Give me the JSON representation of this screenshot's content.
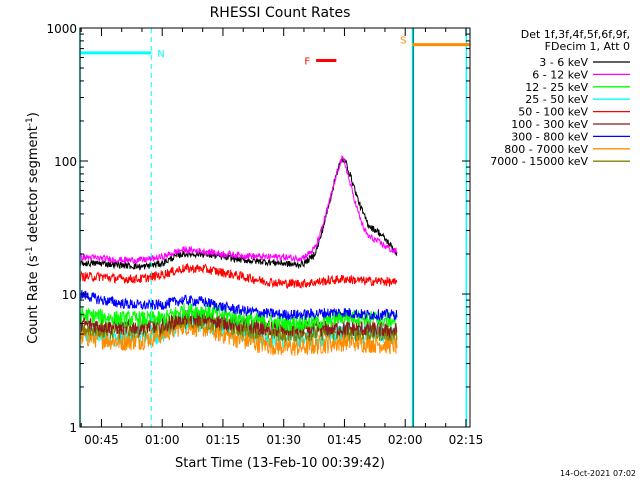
{
  "chart_data": {
    "type": "line",
    "title": "RHESSI Count Rates",
    "xlabel": "Start Time (13-Feb-10 00:39:42)",
    "ylabel_pre": "Count Rate (s",
    "ylabel_sup1": "-1",
    "ylabel_mid": " detector segment",
    "ylabel_sup2": "-1",
    "ylabel_post": ")",
    "x_unit": "minutes after 00:00 UT, 13-Feb-2010",
    "xlim": [
      39.7,
      136.0
    ],
    "ylim": [
      1,
      1000
    ],
    "yscale": "log",
    "x_ticks": [
      {
        "value": 45,
        "label": "00:45"
      },
      {
        "value": 60,
        "label": "01:00"
      },
      {
        "value": 75,
        "label": "01:15"
      },
      {
        "value": 90,
        "label": "01:30"
      },
      {
        "value": 105,
        "label": "01:45"
      },
      {
        "value": 120,
        "label": "02:00"
      },
      {
        "value": 135,
        "label": "02:15"
      }
    ],
    "y_ticks": [
      {
        "value": 1,
        "label": "1"
      },
      {
        "value": 10,
        "label": "10"
      },
      {
        "value": 100,
        "label": "100"
      },
      {
        "value": 1000,
        "label": "1000"
      }
    ],
    "legend_header": [
      "Det 1f,3f,4f,5f,6f,9f,",
      "FDecim 1, Att 0"
    ],
    "legend_position": "right, outside plot",
    "series": [
      {
        "name": "3 - 6 keV",
        "color": "#000000",
        "x": [
          39.7,
          45,
          50,
          55,
          60,
          63,
          65,
          70,
          75,
          80,
          85,
          90,
          93,
          95,
          97,
          98,
          99,
          100,
          101,
          102,
          103,
          103.5,
          104,
          104.5,
          105,
          105.5,
          106,
          107,
          108,
          109,
          110,
          111,
          112,
          113,
          114,
          115,
          116,
          117,
          118
        ],
        "y": [
          17,
          17,
          16.5,
          16,
          17,
          19,
          20,
          20,
          19,
          18,
          17.5,
          17,
          16.5,
          17,
          19,
          21,
          26,
          34,
          45,
          60,
          80,
          90,
          97,
          102,
          100,
          95,
          85,
          70,
          55,
          45,
          38,
          33,
          31,
          30,
          28,
          26,
          24,
          22,
          20
        ]
      },
      {
        "name": "6 - 12 keV",
        "color": "#ff00ff",
        "x": [
          39.7,
          45,
          50,
          55,
          60,
          63,
          65,
          70,
          75,
          80,
          85,
          90,
          93,
          95,
          97,
          98,
          99,
          100,
          101,
          102,
          103,
          103.5,
          104,
          104.5,
          105,
          105.5,
          106,
          107,
          108,
          109,
          110,
          111,
          112,
          113,
          114,
          115,
          116,
          117,
          118
        ],
        "y": [
          19,
          18.5,
          18,
          18,
          19,
          20.5,
          21.5,
          21,
          20,
          19.5,
          19,
          19,
          18.5,
          19,
          21,
          23,
          28,
          36,
          46,
          60,
          78,
          88,
          98,
          104,
          97,
          88,
          75,
          58,
          45,
          36,
          30,
          27,
          26,
          25,
          24,
          23,
          22,
          21,
          21
        ]
      },
      {
        "name": "12 - 25 keV",
        "color": "#00ff00",
        "x": [
          39.7,
          50,
          60,
          65,
          70,
          80,
          90,
          100,
          105,
          110,
          118
        ],
        "y": [
          7,
          6.5,
          6.5,
          7.5,
          7.5,
          6.5,
          6.0,
          6.2,
          6.8,
          6.6,
          6.3
        ]
      },
      {
        "name": "25 - 50 keV",
        "color": "#00ffff",
        "x": [
          39.7,
          50,
          60,
          65,
          70,
          80,
          90,
          100,
          105,
          110,
          118
        ],
        "y": [
          5.0,
          4.6,
          5.0,
          6.0,
          6.0,
          5.1,
          4.6,
          4.8,
          5.2,
          5.0,
          4.8
        ]
      },
      {
        "name": "50 - 100 keV",
        "color": "#ff0000",
        "x": [
          39.7,
          45,
          50,
          55,
          60,
          65,
          70,
          75,
          80,
          85,
          90,
          95,
          100,
          105,
          110,
          115,
          118
        ],
        "y": [
          13.5,
          13.5,
          13,
          13,
          14,
          15.5,
          15.5,
          14.5,
          13.5,
          12.5,
          12,
          12,
          12.5,
          13,
          12.5,
          12.5,
          12
        ]
      },
      {
        "name": "100 - 300 keV",
        "color": "#8b1a1a",
        "x": [
          39.7,
          50,
          60,
          65,
          70,
          80,
          90,
          100,
          110,
          118
        ],
        "y": [
          6.0,
          5.6,
          5.8,
          6.6,
          6.6,
          5.8,
          5.4,
          5.5,
          5.5,
          5.3
        ]
      },
      {
        "name": "300 - 800 keV",
        "color": "#0000ff",
        "x": [
          39.7,
          45,
          50,
          55,
          60,
          65,
          70,
          75,
          80,
          85,
          90,
          95,
          100,
          105,
          110,
          115,
          118
        ],
        "y": [
          10,
          9,
          8.5,
          8.2,
          8.3,
          9,
          8.8,
          8,
          7.5,
          7.2,
          7.0,
          7.0,
          7.2,
          7.3,
          7.0,
          7.0,
          7.0
        ]
      },
      {
        "name": "800 - 7000 keV",
        "color": "#ff8c00",
        "x": [
          39.7,
          45,
          50,
          55,
          60,
          65,
          70,
          75,
          80,
          85,
          90,
          95,
          100,
          105,
          110,
          115,
          118
        ],
        "y": [
          4.8,
          4.6,
          4.4,
          4.5,
          5.0,
          5.8,
          5.6,
          5.0,
          4.5,
          4.2,
          4.0,
          4.0,
          4.2,
          4.4,
          4.3,
          4.2,
          4.1
        ]
      },
      {
        "name": "7000 - 15000 keV",
        "color": "#808000",
        "x": [
          39.7,
          50,
          60,
          65,
          70,
          80,
          90,
          100,
          110,
          118
        ],
        "y": [
          5.5,
          5.2,
          5.5,
          6.3,
          6.2,
          5.4,
          5.0,
          5.1,
          5.1,
          5.0
        ]
      }
    ],
    "annotations": [
      {
        "label": "N",
        "color": "#00ffff",
        "x_start": 39.7,
        "x_end": 57.3,
        "y": 650,
        "boundary_x": 57.3
      },
      {
        "label": "S",
        "color": "#ff8c00",
        "x_start": 121.8,
        "x_end": 136,
        "y": 750
      },
      {
        "label": "F",
        "color": "#ff0000",
        "x_start": 98.0,
        "x_end": 103.0,
        "y": 570
      }
    ],
    "vertical_lines": [
      {
        "x": 39.7,
        "color": "#00ffff"
      },
      {
        "x": 121.8,
        "color": "#00ffff"
      },
      {
        "x": 122.0,
        "color": "#008b8b"
      },
      {
        "x": 135.1,
        "color": "#00ffff"
      }
    ],
    "grid": false
  },
  "footer_timestamp": "14-Oct-2021 07:02"
}
